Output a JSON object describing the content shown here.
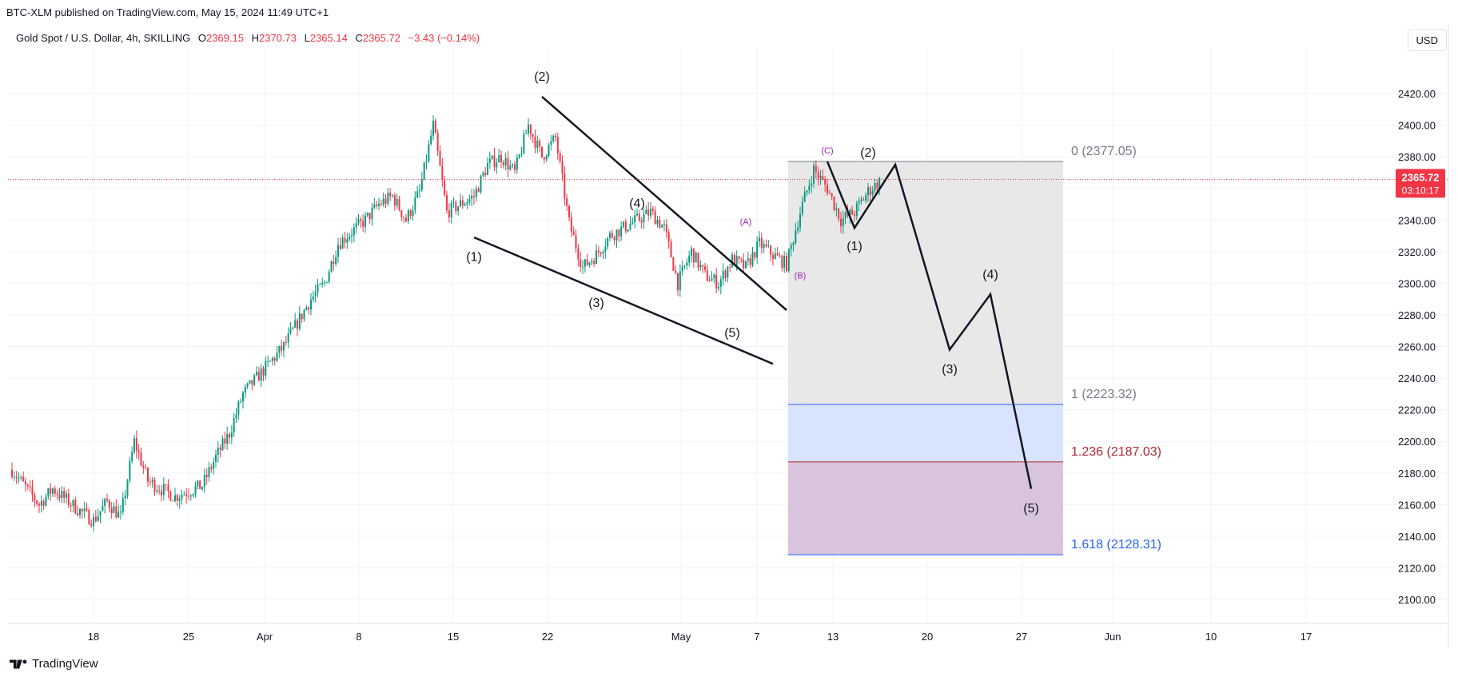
{
  "publisher_line": "BTC-XLM published on TradingView.com, May 15, 2024 11:49 UTC+1",
  "legend": {
    "symbol": "Gold Spot / U.S. Dollar, 4h, SKILLING",
    "o_label": "O",
    "o": "2369.15",
    "h_label": "H",
    "h": "2370.73",
    "l_label": "L",
    "l": "2365.14",
    "c_label": "C",
    "c": "2365.72",
    "change": "−3.43 (−0.14%)"
  },
  "currency_button": "USD",
  "price_tag": {
    "price": "2365.72",
    "countdown": "03:10:17"
  },
  "footer_brand": "TradingView",
  "colors": {
    "up": "#089981",
    "down": "#f23645",
    "fib_line_blue": "#2962ff",
    "wave_purple": "#9c27b0",
    "price_line": "#f23645"
  },
  "chart_data": {
    "type": "candlestick",
    "timeframe": "4h",
    "ylim": [
      2090,
      2435
    ],
    "y_ticks": [
      2100,
      2120,
      2140,
      2160,
      2180,
      2200,
      2220,
      2240,
      2260,
      2280,
      2300,
      2320,
      2340,
      2360,
      2380,
      2400,
      2420
    ],
    "x_ticks": [
      "18",
      "25",
      "Apr",
      "8",
      "15",
      "22",
      "May",
      "7",
      "13",
      "20",
      "27",
      "Jun",
      "10",
      "17"
    ],
    "current_price": 2365.72,
    "price_path": [
      [
        "Mar 12",
        2182
      ],
      [
        "Mar 14",
        2160
      ],
      [
        "Mar 15",
        2170
      ],
      [
        "Mar 17",
        2156
      ],
      [
        "Mar 18",
        2150
      ],
      [
        "Mar 19",
        2162
      ],
      [
        "Mar 20",
        2152
      ],
      [
        "Mar 21",
        2200
      ],
      [
        "Mar 22",
        2175
      ],
      [
        "Mar 24",
        2165
      ],
      [
        "Mar 26",
        2172
      ],
      [
        "Mar 27",
        2190
      ],
      [
        "Mar 28",
        2205
      ],
      [
        "Mar 29",
        2230
      ],
      [
        "Mar 31",
        2250
      ],
      [
        "Apr 1",
        2260
      ],
      [
        "Apr 2",
        2275
      ],
      [
        "Apr 3",
        2290
      ],
      [
        "Apr 4",
        2300
      ],
      [
        "Apr 5",
        2325
      ],
      [
        "Apr 7",
        2340
      ],
      [
        "Apr 8",
        2350
      ],
      [
        "Apr 9",
        2355
      ],
      [
        "Apr 10",
        2340
      ],
      [
        "Apr 11",
        2358
      ],
      [
        "Apr 12",
        2400
      ],
      [
        "Apr 13",
        2345
      ],
      [
        "Apr 15",
        2355
      ],
      [
        "Apr 16",
        2375
      ],
      [
        "Apr 17",
        2380
      ],
      [
        "Apr 18",
        2370
      ],
      [
        "Apr 19",
        2400
      ],
      [
        "Apr 20",
        2380
      ],
      [
        "Apr 21",
        2392
      ],
      [
        "Apr 22",
        2338
      ],
      [
        "Apr 23",
        2310
      ],
      [
        "Apr 24",
        2318
      ],
      [
        "Apr 25",
        2330
      ],
      [
        "Apr 26",
        2335
      ],
      [
        "Apr 28",
        2345
      ],
      [
        "Apr 29",
        2335
      ],
      [
        "Apr 30",
        2300
      ],
      [
        "May 1",
        2320
      ],
      [
        "May 2",
        2305
      ],
      [
        "May 3",
        2300
      ],
      [
        "May 4",
        2315
      ],
      [
        "May 5",
        2310
      ],
      [
        "May 6",
        2325
      ],
      [
        "May 7",
        2318
      ],
      [
        "May 8",
        2312
      ],
      [
        "May 9",
        2345
      ],
      [
        "May 10",
        2372
      ],
      [
        "May 11",
        2360
      ],
      [
        "May 12",
        2340
      ],
      [
        "May 13",
        2345
      ],
      [
        "May 14",
        2358
      ],
      [
        "May 15",
        2365.72
      ]
    ],
    "fib_levels": [
      {
        "label": "0 (2377.05)",
        "value": 2377.05
      },
      {
        "label": "1 (2223.32)",
        "value": 2223.32
      },
      {
        "label": "1.236 (2187.03)",
        "value": 2187.03
      },
      {
        "label": "1.618 (2128.31)",
        "value": 2128.31
      }
    ],
    "wedge_lines": [
      {
        "from": [
          "Apr 20",
          2418
        ],
        "to": [
          "May 8",
          2283
        ]
      },
      {
        "from": [
          "Apr 15",
          2329
        ],
        "to": [
          "May 7",
          2249
        ]
      }
    ],
    "projection": [
      [
        "May 11",
        2377
      ],
      [
        "May 13",
        2335
      ],
      [
        "May 16",
        2375
      ],
      [
        "May 20",
        2258
      ],
      [
        "May 23",
        2293
      ],
      [
        "May 26",
        2170
      ]
    ],
    "wave_labels": [
      {
        "text": "(1)",
        "at": [
          "Apr 15",
          2314
        ]
      },
      {
        "text": "(2)",
        "at": [
          "Apr 20",
          2428
        ]
      },
      {
        "text": "(3)",
        "at": [
          "Apr 24",
          2285
        ]
      },
      {
        "text": "(4)",
        "at": [
          "Apr 27",
          2348
        ]
      },
      {
        "text": "(5)",
        "at": [
          "May 4",
          2266
        ]
      },
      {
        "text": "(A)",
        "at": [
          "May 5",
          2337
        ],
        "small": true
      },
      {
        "text": "(B)",
        "at": [
          "May 9",
          2303
        ],
        "small": true
      },
      {
        "text": "(C)",
        "at": [
          "May 11",
          2382
        ],
        "small": true
      },
      {
        "text": "(2)",
        "at": [
          "May 14",
          2380
        ]
      },
      {
        "text": "(1)",
        "at": [
          "May 13",
          2321
        ]
      },
      {
        "text": "(3)",
        "at": [
          "May 20",
          2243
        ]
      },
      {
        "text": "(4)",
        "at": [
          "May 23",
          2303
        ]
      },
      {
        "text": "(5)",
        "at": [
          "May 26",
          2155
        ]
      }
    ]
  }
}
